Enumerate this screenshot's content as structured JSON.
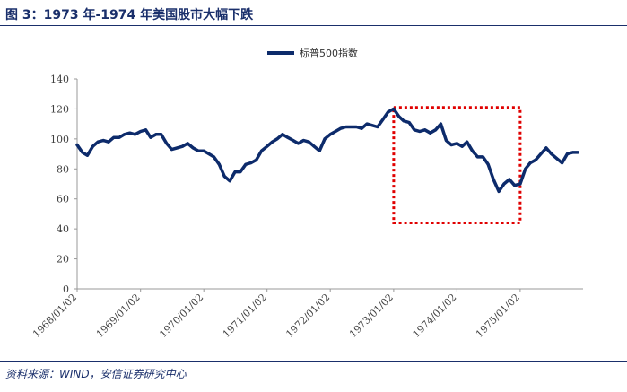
{
  "figure": {
    "title": "图 3：1973 年-1974 年美国股市大幅下跌",
    "source": "资料来源：WIND，安信证券研究中心"
  },
  "colors": {
    "series": "#0d2b6b",
    "highlight": "#e00000",
    "rule": "#1a2f6b"
  },
  "chart_data": {
    "type": "line",
    "title": "",
    "xlabel": "",
    "ylabel": "",
    "ylim": [
      0,
      140
    ],
    "yticks": [
      0,
      20,
      40,
      60,
      80,
      100,
      120,
      140
    ],
    "xticks": [
      "1968/01/02",
      "1969/01/02",
      "1970/01/02",
      "1971/01/02",
      "1972/01/02",
      "1973/01/02",
      "1974/01/02",
      "1975/01/02"
    ],
    "xlim": [
      "1968/01/02",
      "1975/12/31"
    ],
    "grid": false,
    "legend_position": "top-center",
    "highlight_box": {
      "x": [
        "1973/01/02",
        "1975/01/02"
      ],
      "y": [
        44,
        121
      ]
    },
    "series": [
      {
        "name": "标普500指数",
        "x": [
          "1968/01/02",
          "1968/02/01",
          "1968/03/01",
          "1968/04/01",
          "1968/05/01",
          "1968/06/01",
          "1968/07/01",
          "1968/08/01",
          "1968/09/01",
          "1968/10/01",
          "1968/11/01",
          "1968/12/01",
          "1969/01/02",
          "1969/02/01",
          "1969/03/01",
          "1969/04/01",
          "1969/05/01",
          "1969/06/01",
          "1969/07/01",
          "1969/08/01",
          "1969/09/01",
          "1969/10/01",
          "1969/11/01",
          "1969/12/01",
          "1970/01/02",
          "1970/02/01",
          "1970/03/01",
          "1970/04/01",
          "1970/05/01",
          "1970/06/01",
          "1970/07/01",
          "1970/08/01",
          "1970/09/01",
          "1970/10/01",
          "1970/11/01",
          "1970/12/01",
          "1971/01/02",
          "1971/02/01",
          "1971/03/01",
          "1971/04/01",
          "1971/05/01",
          "1971/06/01",
          "1971/07/01",
          "1971/08/01",
          "1971/09/01",
          "1971/10/01",
          "1971/11/01",
          "1971/12/01",
          "1972/01/02",
          "1972/02/01",
          "1972/03/01",
          "1972/04/01",
          "1972/05/01",
          "1972/06/01",
          "1972/07/01",
          "1972/08/01",
          "1972/09/01",
          "1972/10/01",
          "1972/11/01",
          "1972/12/01",
          "1973/01/02",
          "1973/02/01",
          "1973/03/01",
          "1973/04/01",
          "1973/05/01",
          "1973/06/01",
          "1973/07/01",
          "1973/08/01",
          "1973/09/01",
          "1973/10/01",
          "1973/11/01",
          "1973/12/01",
          "1974/01/02",
          "1974/02/01",
          "1974/03/01",
          "1974/04/01",
          "1974/05/01",
          "1974/06/01",
          "1974/07/01",
          "1974/08/01",
          "1974/09/01",
          "1974/10/01",
          "1974/11/01",
          "1974/12/01",
          "1975/01/02",
          "1975/02/01",
          "1975/03/01",
          "1975/04/01",
          "1975/05/01",
          "1975/06/01",
          "1975/07/01",
          "1975/08/01",
          "1975/09/01",
          "1975/10/01",
          "1975/11/01",
          "1975/12/01"
        ],
        "y": [
          96,
          91,
          89,
          95,
          98,
          99,
          98,
          101,
          101,
          103,
          104,
          103,
          105,
          106,
          101,
          103,
          103,
          97,
          93,
          94,
          95,
          97,
          94,
          92,
          92,
          90,
          88,
          83,
          75,
          72,
          78,
          78,
          83,
          84,
          86,
          92,
          95,
          98,
          100,
          103,
          101,
          99,
          97,
          99,
          98,
          95,
          92,
          100,
          103,
          105,
          107,
          108,
          108,
          108,
          107,
          110,
          109,
          108,
          113,
          118,
          120,
          115,
          112,
          111,
          106,
          105,
          106,
          104,
          106,
          110,
          99,
          96,
          97,
          95,
          98,
          92,
          88,
          88,
          83,
          73,
          65,
          70,
          73,
          69,
          70,
          80,
          84,
          86,
          90,
          94,
          90,
          87,
          84,
          90,
          91,
          91
        ]
      }
    ]
  }
}
